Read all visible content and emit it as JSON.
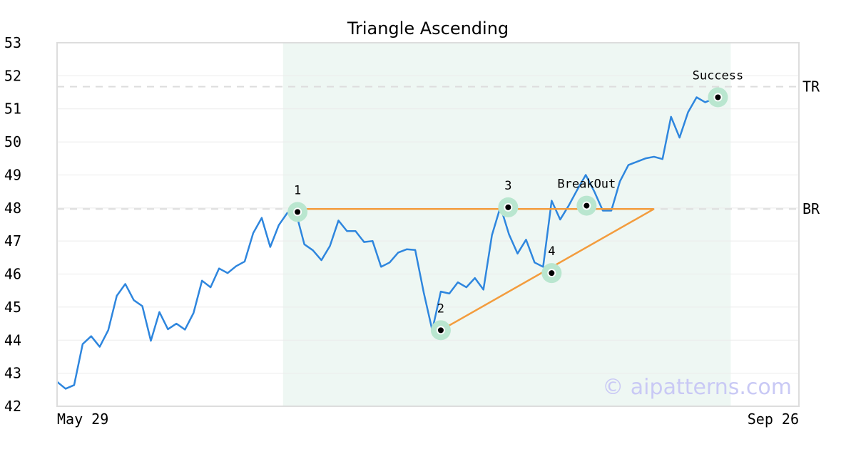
{
  "chart_data": {
    "type": "line",
    "title": "Triangle Ascending",
    "xlabel": "",
    "ylabel": "",
    "ylim": [
      42,
      53
    ],
    "yticks": [
      42,
      43,
      44,
      45,
      46,
      47,
      48,
      49,
      50,
      51,
      52,
      53
    ],
    "xlim": [
      0,
      87
    ],
    "x_tick_labels": [
      {
        "x": 0,
        "label": "May 29"
      },
      {
        "x": 87,
        "label": "Sep 26"
      }
    ],
    "grid": true,
    "pattern_window": [
      26.5,
      79
    ],
    "series": [
      {
        "values": [
          42.74,
          42.53,
          42.64,
          43.88,
          44.12,
          43.8,
          44.3,
          45.34,
          45.7,
          45.21,
          45.03,
          43.98,
          44.85,
          44.33,
          44.5,
          44.32,
          44.82,
          45.8,
          45.6,
          46.17,
          46.03,
          46.24,
          46.38,
          47.24,
          47.7,
          46.82,
          47.48,
          47.85,
          47.88,
          46.9,
          46.72,
          46.42,
          46.85,
          47.62,
          47.3,
          47.3,
          46.97,
          47.0,
          46.22,
          46.35,
          46.65,
          46.75,
          46.73,
          45.44,
          44.3,
          45.47,
          45.41,
          45.75,
          45.6,
          45.88,
          45.53,
          47.18,
          48.04,
          47.2,
          46.62,
          47.04,
          46.35,
          46.22,
          48.22,
          47.65,
          48.07,
          48.55,
          49.0,
          48.5,
          47.92,
          47.92,
          48.8,
          49.3,
          49.4,
          49.5,
          49.55,
          49.48,
          50.76,
          50.13,
          50.9,
          51.35,
          51.2,
          51.3
        ]
      }
    ],
    "reference_lines": [
      {
        "label": "TR",
        "y": 51.67
      },
      {
        "label": "BR",
        "y": 47.97
      }
    ],
    "pattern_lines": [
      {
        "from": [
          28,
          47.97
        ],
        "to": [
          70,
          47.97
        ]
      },
      {
        "from": [
          45,
          44.3
        ],
        "to": [
          70,
          47.97
        ]
      }
    ],
    "points": [
      {
        "label": "1",
        "x": 28.2,
        "y": 47.88
      },
      {
        "label": "2",
        "x": 45,
        "y": 44.3
      },
      {
        "label": "3",
        "x": 52.9,
        "y": 48.02
      },
      {
        "label": "4",
        "x": 58,
        "y": 46.03
      },
      {
        "label": "BreakOut",
        "x": 62.1,
        "y": 48.07
      },
      {
        "label": "Success",
        "x": 77.5,
        "y": 51.35
      }
    ],
    "watermark": "© aipatterns.com",
    "colors": {
      "line": "#2e86de",
      "pattern": "#f39c3d",
      "window": "#eef7f3",
      "marker_halo": "#b9e6cf",
      "reference": "#dddddd",
      "watermark": "#c9c9f5"
    }
  }
}
